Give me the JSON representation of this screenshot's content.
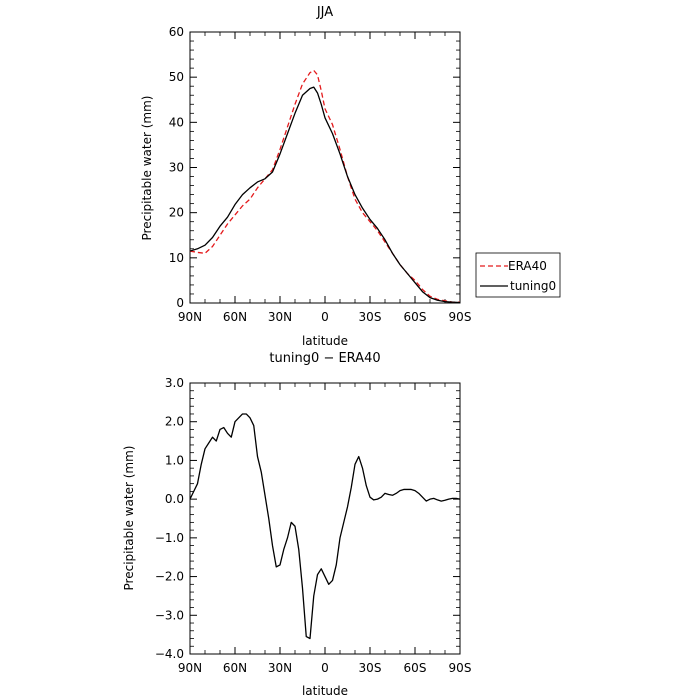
{
  "chart_data": [
    {
      "type": "line",
      "title": "JJA",
      "xlabel": "latitude",
      "ylabel": "Precipitable water (mm)",
      "xlim": [
        90,
        -90
      ],
      "ylim": [
        0,
        60
      ],
      "x_ticks": [
        90,
        60,
        30,
        0,
        -30,
        -60,
        -90
      ],
      "x_tick_labels": [
        "90N",
        "60N",
        "30N",
        "0",
        "30S",
        "60S",
        "90S"
      ],
      "y_ticks": [
        0,
        10,
        20,
        30,
        40,
        50,
        60
      ],
      "y_tick_labels": [
        "0",
        "10",
        "20",
        "30",
        "40",
        "50",
        "60"
      ],
      "legend": "right",
      "series": [
        {
          "name": "ERA40",
          "color": "#e41a1c",
          "dash": "dashed",
          "x": [
            90,
            85,
            80,
            75,
            70,
            65,
            60,
            55,
            50,
            45,
            40,
            35,
            30,
            25,
            20,
            15,
            10,
            7.5,
            5,
            2.5,
            0,
            -5,
            -10,
            -15,
            -20,
            -25,
            -30,
            -35,
            -40,
            -45,
            -50,
            -55,
            -60,
            -65,
            -70,
            -75,
            -80,
            -85,
            -90
          ],
          "y": [
            11.5,
            11.2,
            11.0,
            12.5,
            15.0,
            17.5,
            19.5,
            21.5,
            23.0,
            25.5,
            27.5,
            29.5,
            34.0,
            39.0,
            44.0,
            48.5,
            51.0,
            51.5,
            50.5,
            47.0,
            43.0,
            39.5,
            34.0,
            28.0,
            23.0,
            20.0,
            18.0,
            16.0,
            13.5,
            11.0,
            8.5,
            6.5,
            5.0,
            3.0,
            1.5,
            0.8,
            0.5,
            0.2,
            0.2
          ]
        },
        {
          "name": "tuning0",
          "color": "#000000",
          "dash": "solid",
          "x": [
            90,
            85,
            80,
            75,
            70,
            65,
            60,
            55,
            50,
            45,
            40,
            35,
            30,
            25,
            20,
            15,
            10,
            7.5,
            5,
            2.5,
            0,
            -5,
            -10,
            -15,
            -20,
            -25,
            -30,
            -35,
            -40,
            -45,
            -50,
            -55,
            -60,
            -65,
            -70,
            -75,
            -80,
            -85,
            -90
          ],
          "y": [
            11.5,
            12.0,
            12.8,
            14.5,
            17.0,
            19.0,
            21.8,
            24.0,
            25.5,
            26.8,
            27.5,
            29.0,
            33.0,
            37.5,
            42.0,
            46.0,
            47.5,
            47.8,
            46.5,
            44.0,
            41.0,
            37.5,
            33.0,
            28.0,
            24.0,
            21.0,
            18.5,
            16.5,
            14.0,
            11.0,
            8.5,
            6.5,
            4.5,
            2.5,
            1.2,
            0.6,
            0.3,
            0.2,
            0.1
          ]
        }
      ]
    },
    {
      "type": "line",
      "title": "tuning0 − ERA40",
      "xlabel": "latitude",
      "ylabel": "Precipitable water (mm)",
      "xlim": [
        90,
        -90
      ],
      "ylim": [
        -4.0,
        3.0
      ],
      "x_ticks": [
        90,
        60,
        30,
        0,
        -30,
        -60,
        -90
      ],
      "x_tick_labels": [
        "90N",
        "60N",
        "30N",
        "0",
        "30S",
        "60S",
        "90S"
      ],
      "y_ticks": [
        3.0,
        2.0,
        1.0,
        0.0,
        -1.0,
        -2.0,
        -3.0,
        -4.0
      ],
      "y_tick_labels": [
        "3.0",
        "2.0",
        "1.0",
        "0.0",
        "−1.0",
        "−2.0",
        "−3.0",
        "−4.0"
      ],
      "legend": "none",
      "series": [
        {
          "color": "#000000",
          "dash": "solid",
          "x": [
            90,
            87.5,
            85,
            82.5,
            80,
            77.5,
            75,
            72.5,
            70,
            67.5,
            65,
            62.5,
            60,
            57.5,
            55,
            52.5,
            50,
            47.5,
            45,
            42.5,
            40,
            37.5,
            35,
            32.5,
            30,
            27.5,
            25,
            22.5,
            20,
            17.5,
            15,
            12.5,
            10,
            7.5,
            5,
            2.5,
            0,
            -2.5,
            -5,
            -7.5,
            -10,
            -12.5,
            -15,
            -17.5,
            -20,
            -22.5,
            -25,
            -27.5,
            -30,
            -32.5,
            -35,
            -37.5,
            -40,
            -42.5,
            -45,
            -47.5,
            -50,
            -52.5,
            -55,
            -57.5,
            -60,
            -62.5,
            -65,
            -67.5,
            -70,
            -72.5,
            -75,
            -77.5,
            -80,
            -82.5,
            -85,
            -87.5,
            -90
          ],
          "y": [
            0.0,
            0.2,
            0.4,
            0.9,
            1.3,
            1.45,
            1.6,
            1.5,
            1.8,
            1.85,
            1.7,
            1.6,
            2.0,
            2.1,
            2.2,
            2.2,
            2.1,
            1.9,
            1.1,
            0.7,
            0.1,
            -0.5,
            -1.2,
            -1.75,
            -1.7,
            -1.3,
            -1.0,
            -0.6,
            -0.7,
            -1.3,
            -2.3,
            -3.55,
            -3.6,
            -2.5,
            -1.95,
            -1.8,
            -2.0,
            -2.2,
            -2.1,
            -1.7,
            -1.0,
            -0.6,
            -0.2,
            0.3,
            0.9,
            1.1,
            0.8,
            0.35,
            0.05,
            -0.02,
            0.0,
            0.05,
            0.15,
            0.12,
            0.1,
            0.15,
            0.22,
            0.25,
            0.25,
            0.25,
            0.22,
            0.15,
            0.05,
            -0.05,
            0.0,
            0.02,
            -0.02,
            -0.05,
            -0.03,
            0.0,
            0.02,
            0.02,
            0.0
          ]
        }
      ]
    }
  ]
}
